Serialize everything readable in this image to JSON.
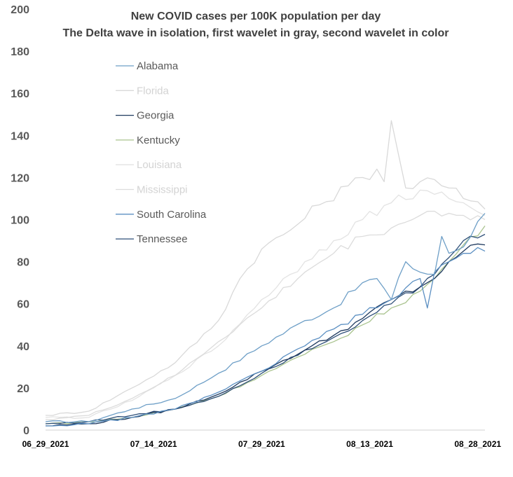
{
  "chart_data": {
    "type": "line",
    "title": "New COVID cases per 100K population per day",
    "subtitle": "The Delta wave in isolation, first wavelet in gray, second wavelet in color",
    "xlabel": "",
    "ylabel": "",
    "ylim": [
      0,
      200
    ],
    "yticks": [
      0,
      20,
      40,
      60,
      80,
      100,
      120,
      140,
      160,
      180,
      200
    ],
    "x_tick_labels": [
      "06_29_2021",
      "07_14_2021",
      "07_29_2021",
      "08_13_2021",
      "08_28_2021"
    ],
    "x_tick_days": [
      0,
      15,
      30,
      45,
      60
    ],
    "x_range_days": [
      0,
      61
    ],
    "grid": false,
    "legend_position": "left",
    "series": [
      {
        "name": "Alabama",
        "color": "#6e9fc7",
        "key_days": [
          0,
          6,
          12,
          18,
          24,
          30,
          36,
          40,
          44,
          46,
          48,
          50,
          52,
          54,
          55,
          56,
          58,
          61
        ],
        "values": [
          4,
          4,
          10,
          15,
          27,
          40,
          52,
          58,
          70,
          72,
          62,
          80,
          75,
          74,
          92,
          84,
          87,
          103
        ]
      },
      {
        "name": "Florida",
        "color": "#d9d9d9",
        "key_days": [
          0,
          6,
          12,
          18,
          24,
          27,
          30,
          34,
          38,
          42,
          44,
          46,
          47,
          48,
          50,
          52,
          54,
          56,
          58,
          61
        ],
        "values": [
          7,
          9,
          20,
          32,
          52,
          72,
          86,
          95,
          107,
          116,
          120,
          124,
          118,
          147,
          115,
          118,
          119,
          115,
          110,
          105
        ]
      },
      {
        "name": "Georgia",
        "color": "#1f3a5f",
        "key_days": [
          0,
          6,
          12,
          18,
          24,
          30,
          36,
          40,
          44,
          48,
          52,
          54,
          56,
          58,
          61
        ],
        "values": [
          2,
          3,
          6,
          10,
          17,
          28,
          38,
          45,
          53,
          62,
          68,
          72,
          80,
          85,
          88
        ]
      },
      {
        "name": "Kentucky",
        "color": "#a9c38e",
        "key_days": [
          0,
          6,
          12,
          18,
          24,
          30,
          36,
          40,
          44,
          48,
          52,
          54,
          56,
          58,
          61
        ],
        "values": [
          3,
          4,
          6,
          10,
          16,
          26,
          36,
          42,
          50,
          58,
          66,
          72,
          80,
          88,
          97
        ]
      },
      {
        "name": "Louisiana",
        "color": "#e3e3e3",
        "key_days": [
          0,
          6,
          12,
          18,
          24,
          30,
          36,
          40,
          44,
          48,
          52,
          54,
          56,
          58,
          61
        ],
        "values": [
          6,
          6,
          14,
          26,
          40,
          62,
          80,
          90,
          100,
          108,
          114,
          112,
          110,
          108,
          102
        ]
      },
      {
        "name": "Mississippi",
        "color": "#dcdcdc",
        "key_days": [
          0,
          6,
          12,
          18,
          24,
          30,
          36,
          40,
          44,
          48,
          52,
          54,
          56,
          58,
          61
        ],
        "values": [
          5,
          7,
          15,
          26,
          42,
          58,
          75,
          84,
          92,
          96,
          102,
          104,
          103,
          102,
          100
        ]
      },
      {
        "name": "South Carolina",
        "color": "#5b8fc2",
        "key_days": [
          0,
          6,
          12,
          18,
          24,
          30,
          36,
          40,
          44,
          48,
          52,
          53,
          54,
          56,
          58,
          61
        ],
        "values": [
          2,
          3,
          6,
          10,
          18,
          28,
          40,
          48,
          55,
          62,
          72,
          58,
          75,
          80,
          84,
          85
        ]
      },
      {
        "name": "Tennessee",
        "color": "#2e4f78",
        "key_days": [
          0,
          6,
          12,
          18,
          24,
          30,
          36,
          40,
          44,
          48,
          52,
          54,
          56,
          58,
          61
        ],
        "values": [
          3,
          4,
          7,
          10,
          16,
          27,
          38,
          44,
          52,
          60,
          68,
          74,
          82,
          90,
          93
        ]
      }
    ]
  }
}
